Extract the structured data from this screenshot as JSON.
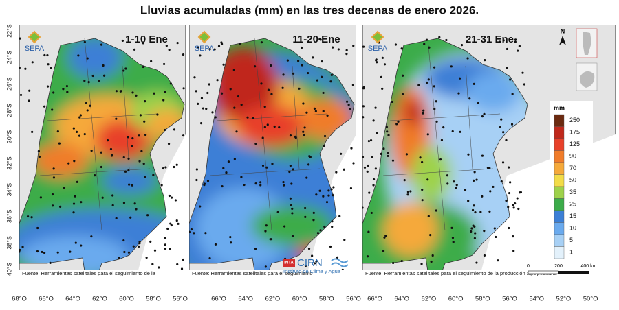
{
  "title": "Lluvias acumuladas (mm) en las tres decenas de enero 2026.",
  "panels": [
    {
      "label": "1-10 Ene",
      "logo": "SEPA",
      "footer": "Fuente: Herramientas satelitales para el seguimiento de la"
    },
    {
      "label": "11-20 Ene",
      "logo": "SEPA",
      "footer": "Fuente: Herramientas satelitales para el seguimiento"
    },
    {
      "label": "21-31 Ene",
      "logo": "SEPA",
      "footer": "Fuente: Herramientas satelitales para el seguimiento de la producción agropecuaria"
    }
  ],
  "latitude_labels": [
    "22°S",
    "24°S",
    "26°S",
    "28°S",
    "30°S",
    "32°S",
    "34°S",
    "36°S",
    "38°S",
    "40°S"
  ],
  "longitude_labels": [
    [
      "68°O",
      "66°O",
      "64°O",
      "62°O",
      "60°O",
      "58°O",
      "56°O"
    ],
    [
      "66°O",
      "64°O",
      "62°O",
      "60°O",
      "58°O",
      "56°O"
    ],
    [
      "66°O",
      "64°O",
      "62°O",
      "60°O",
      "58°O",
      "56°O",
      "54°O",
      "52°O",
      "50°O"
    ]
  ],
  "legend": {
    "title": "mm",
    "levels": [
      250,
      175,
      125,
      90,
      70,
      50,
      35,
      25,
      15,
      10,
      5,
      1
    ],
    "colors": [
      "#6b2a10",
      "#c0281b",
      "#e8412a",
      "#f07c2a",
      "#f5a93a",
      "#f2dc48",
      "#9ed24b",
      "#3cac4a",
      "#3c7fd6",
      "#6aaaee",
      "#a7d0f5",
      "#e3f1fb"
    ]
  },
  "scale_bar": [
    "0",
    "200",
    "400 km"
  ],
  "cirn": {
    "inta": "INTA",
    "name": "CIRN",
    "subtitle": "Instituto de Clima y Agua"
  },
  "north": "N"
}
